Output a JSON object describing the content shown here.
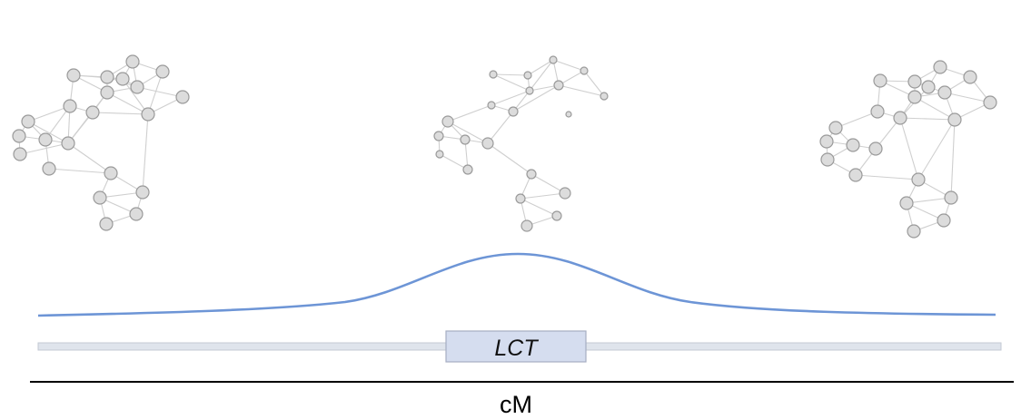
{
  "gene": {
    "label": "LCT"
  },
  "axis": {
    "label": "cM"
  },
  "colors": {
    "curve": "#6d95d6",
    "chromosome": "#dfe4ec",
    "gene_box": "#d5ddef",
    "node_fill": "#dcdcdc",
    "node_stroke": "#9a9a9a",
    "edge": "#cfcfcf"
  }
}
